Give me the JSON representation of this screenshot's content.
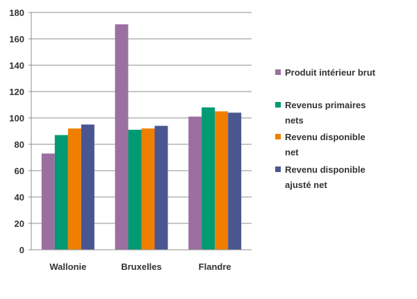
{
  "chart_data": {
    "type": "bar",
    "title": "",
    "xlabel": "",
    "ylabel": "",
    "ylim": [
      0,
      180
    ],
    "yticks": [
      0,
      20,
      40,
      60,
      80,
      100,
      120,
      140,
      160,
      180
    ],
    "grid": true,
    "legend_position": "right",
    "categories": [
      "Wallonie",
      "Bruxelles",
      "Flandre"
    ],
    "series": [
      {
        "name": "Produit intérieur brut",
        "color": "#9b6fa0",
        "values": [
          73,
          171,
          101
        ]
      },
      {
        "name": "Revenus primaires nets",
        "color": "#009a73",
        "values": [
          87,
          91,
          108
        ]
      },
      {
        "name": "Revenu disponible net",
        "color": "#f07f00",
        "values": [
          92,
          92,
          105
        ]
      },
      {
        "name": "Revenu disponible ajusté net",
        "color": "#4a5690",
        "values": [
          95,
          94,
          104
        ]
      }
    ]
  }
}
